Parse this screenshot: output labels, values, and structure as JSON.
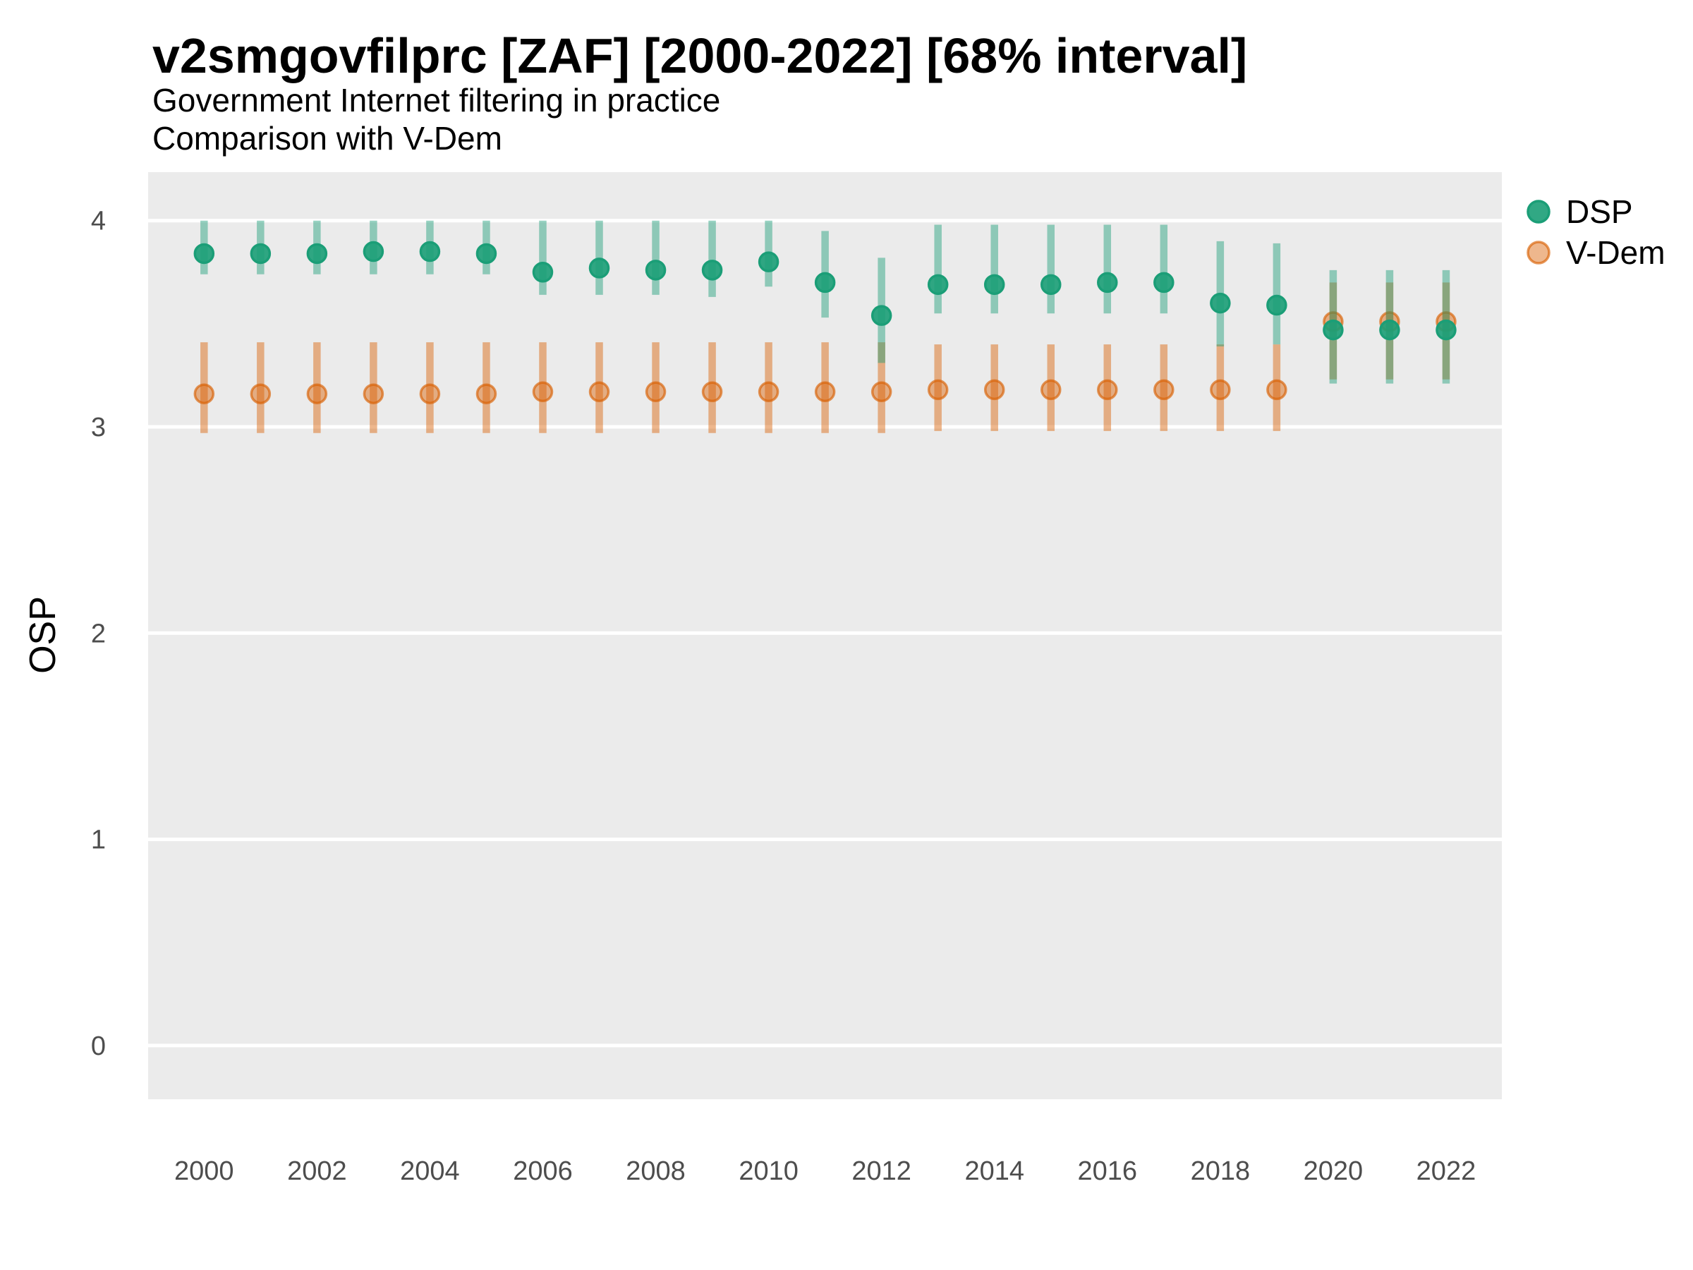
{
  "header": {
    "title": "v2smgovfilprc [ZAF] [2000-2022] [68% interval]",
    "subtitle_line1": "Government Internet filtering in practice",
    "subtitle_line2": "Comparison with V-Dem"
  },
  "y_axis_title": "OSP",
  "legend": {
    "position": "right",
    "entries": [
      {
        "label": "DSP",
        "color": "#1B9E77"
      },
      {
        "label": "V-Dem",
        "color": "#D95F02"
      }
    ]
  },
  "colors": {
    "dsp": "#1B9E77",
    "vdem": "#D95F02",
    "panel_background": "#EBEBEB",
    "gridline": "#FFFFFF",
    "text": "#000000",
    "tick_text": "#4d4d4d"
  },
  "chart_data": {
    "type": "pointrange",
    "interval": "68%",
    "title": "v2smgovfilprc [ZAF] [2000-2022] [68% interval]",
    "subtitle": "Government Internet filtering in practice — Comparison with V-Dem",
    "xlabel": "",
    "ylabel": "OSP",
    "ylim": [
      -0.26,
      4.24
    ],
    "yticks": [
      0,
      1,
      2,
      3,
      4
    ],
    "xticks": [
      2000,
      2002,
      2004,
      2006,
      2008,
      2010,
      2012,
      2014,
      2016,
      2018,
      2020,
      2022
    ],
    "grid": "major-horizontal-only",
    "legend_position": "right",
    "x": [
      2000,
      2001,
      2002,
      2003,
      2004,
      2005,
      2006,
      2007,
      2008,
      2009,
      2010,
      2011,
      2012,
      2013,
      2014,
      2015,
      2016,
      2017,
      2018,
      2019,
      2020,
      2021,
      2022
    ],
    "series": [
      {
        "name": "V-Dem",
        "values": [
          3.16,
          3.16,
          3.16,
          3.16,
          3.16,
          3.16,
          3.17,
          3.17,
          3.17,
          3.17,
          3.17,
          3.17,
          3.17,
          3.18,
          3.18,
          3.18,
          3.18,
          3.18,
          3.18,
          3.18,
          3.51,
          3.51,
          3.51
        ],
        "lower": [
          2.97,
          2.97,
          2.97,
          2.97,
          2.97,
          2.97,
          2.97,
          2.97,
          2.97,
          2.97,
          2.97,
          2.97,
          2.97,
          2.98,
          2.98,
          2.98,
          2.98,
          2.98,
          2.98,
          2.98,
          3.23,
          3.23,
          3.23
        ],
        "upper": [
          3.41,
          3.41,
          3.41,
          3.41,
          3.41,
          3.41,
          3.41,
          3.41,
          3.41,
          3.41,
          3.41,
          3.41,
          3.41,
          3.4,
          3.4,
          3.4,
          3.4,
          3.4,
          3.4,
          3.4,
          3.7,
          3.7,
          3.7
        ]
      },
      {
        "name": "DSP",
        "values": [
          3.84,
          3.84,
          3.84,
          3.85,
          3.85,
          3.84,
          3.75,
          3.77,
          3.76,
          3.76,
          3.8,
          3.7,
          3.54,
          3.69,
          3.69,
          3.69,
          3.7,
          3.7,
          3.6,
          3.59,
          3.47,
          3.47,
          3.47
        ],
        "lower": [
          3.74,
          3.74,
          3.74,
          3.74,
          3.74,
          3.74,
          3.64,
          3.64,
          3.64,
          3.63,
          3.68,
          3.53,
          3.31,
          3.55,
          3.55,
          3.55,
          3.55,
          3.55,
          3.39,
          3.4,
          3.21,
          3.21,
          3.21
        ],
        "upper": [
          4.0,
          4.0,
          4.0,
          4.0,
          4.0,
          4.0,
          4.0,
          4.0,
          4.0,
          4.0,
          4.0,
          3.95,
          3.82,
          3.98,
          3.98,
          3.98,
          3.98,
          3.98,
          3.9,
          3.89,
          3.76,
          3.76,
          3.76
        ]
      }
    ]
  }
}
